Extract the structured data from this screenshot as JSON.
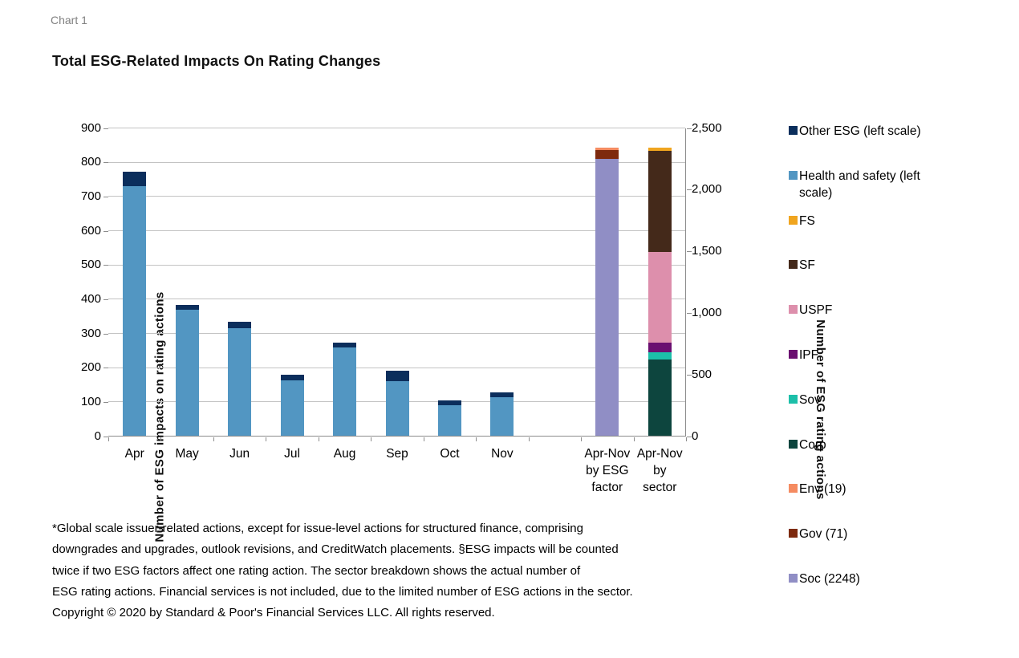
{
  "page": {
    "chart_label": "Chart 1",
    "title": "Total ESG-Related Impacts On Rating Changes"
  },
  "legend": [
    {
      "label": "Other ESG (left scale)",
      "color": "#0b2e5c"
    },
    {
      "label": "Health and safety (left scale)",
      "color": "#5296c2"
    },
    {
      "label": "FS",
      "color": "#f0a51f"
    },
    {
      "label": "SF",
      "color": "#44291a"
    },
    {
      "label": "USPF",
      "color": "#dd8fac"
    },
    {
      "label": "IPF",
      "color": "#6b0f70"
    },
    {
      "label": "Sov",
      "color": "#1cbfa9"
    },
    {
      "label": "Corp",
      "color": "#0d453e"
    },
    {
      "label": "Env (19)",
      "color": "#f58b61"
    },
    {
      "label": "Gov (71)",
      "color": "#7e2a0e"
    },
    {
      "label": "Soc (2248)",
      "color": "#908ec5"
    }
  ],
  "footnote_lines": [
    "*Global scale issuer-related actions, except for issue-level actions for structured finance, comprising",
    "downgrades and upgrades, outlook revisions, and CreditWatch placements. §ESG impacts will be counted",
    "twice if two ESG factors affect one rating action. The sector breakdown shows the actual number of",
    "ESG rating actions. Financial services is not included, due to the limited number of ESG actions in the sector.",
    "Copyright © 2020 by Standard & Poor's Financial Services LLC. All rights reserved."
  ],
  "chart_data": {
    "type": "bar",
    "stacked": true,
    "title": "Total ESG-Related Impacts On Rating Changes",
    "grid": "horizontal, every 100 left-scale units",
    "legend_position": "right",
    "left_axis": {
      "label": "Number of ESG impacts on rating actions",
      "range": [
        0,
        900
      ],
      "tick_labels": [
        "0",
        "100",
        "200",
        "300",
        "400",
        "500",
        "600",
        "700",
        "800",
        "900"
      ],
      "tick_values": [
        0,
        100,
        200,
        300,
        400,
        500,
        600,
        700,
        800,
        900
      ]
    },
    "right_axis": {
      "label": "Number  of ESG rating actions",
      "range": [
        0,
        2500
      ],
      "tick_labels": [
        "0",
        "500",
        "1,000",
        "1,500",
        "2,000",
        "2,500"
      ],
      "tick_values": [
        0,
        500,
        1000,
        1500,
        2000,
        2500
      ]
    },
    "categories": [
      "Apr",
      "May",
      "Jun",
      "Jul",
      "Aug",
      "Sep",
      "Oct",
      "Nov",
      "",
      "Apr-Nov\nby ESG\nfactor",
      "Apr-Nov\nby\nsector"
    ],
    "monthly_bars": {
      "scale": "left",
      "slots": [
        0,
        1,
        2,
        3,
        4,
        5,
        6,
        7
      ],
      "series": [
        {
          "name": "Health and safety (left scale)",
          "color": "#5296c2",
          "values": [
            730,
            368,
            315,
            162,
            258,
            160,
            88,
            112
          ]
        },
        {
          "name": "Other ESG (left scale)",
          "color": "#0b2e5c",
          "values": [
            40,
            13,
            19,
            17,
            15,
            30,
            15,
            15
          ]
        }
      ]
    },
    "esg_factor_bar": {
      "category": "Apr-Nov by ESG factor",
      "slot": 9,
      "scale": "right",
      "segments": [
        {
          "name": "Soc",
          "value": 2248,
          "color": "#908ec5"
        },
        {
          "name": "Gov",
          "value": 71,
          "color": "#7e2a0e"
        },
        {
          "name": "Env",
          "value": 19,
          "color": "#f58b61"
        }
      ]
    },
    "sector_bar": {
      "category": "Apr-Nov by sector",
      "slot": 10,
      "scale": "right",
      "segments": [
        {
          "name": "Corp",
          "value": 620,
          "color": "#0d453e"
        },
        {
          "name": "Sov",
          "value": 58,
          "color": "#1cbfa9"
        },
        {
          "name": "IPF",
          "value": 77,
          "color": "#6b0f70"
        },
        {
          "name": "USPF",
          "value": 735,
          "color": "#dd8fac"
        },
        {
          "name": "SF",
          "value": 820,
          "color": "#44291a"
        },
        {
          "name": "FS",
          "value": 25,
          "color": "#f0a51f"
        }
      ]
    }
  }
}
